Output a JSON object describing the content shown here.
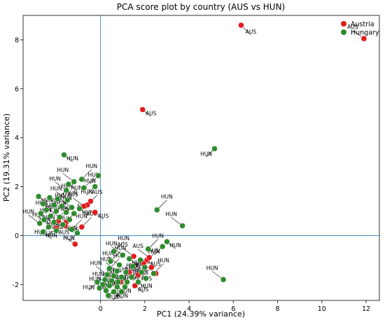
{
  "chart_data": {
    "type": "scatter",
    "title": "PCA score plot by country (AUS vs HUN)",
    "xlabel": "PC1 (24.39% variance)",
    "ylabel": "PC2 (19.31% variance)",
    "xlim": [
      -3.5,
      12.6
    ],
    "ylim": [
      -2.65,
      9.0
    ],
    "xticks": [
      0,
      2,
      4,
      6,
      8,
      10,
      12
    ],
    "yticks": [
      -2,
      0,
      2,
      4,
      6,
      8
    ],
    "grid": false,
    "legend_position": "top-right",
    "reference_lines": {
      "x": 0,
      "y": 0,
      "color": "#1f77b4"
    },
    "series": [
      {
        "name": "Austria",
        "color": "#e41a1c",
        "point_label": "AUS",
        "points": [
          [
            6.35,
            8.6
          ],
          [
            11.9,
            8.05
          ],
          [
            1.9,
            5.15
          ],
          [
            -0.45,
            1.4
          ],
          [
            -0.6,
            1.25
          ],
          [
            -0.75,
            1.2
          ],
          [
            -0.25,
            0.95
          ],
          [
            -1.55,
            0.55
          ],
          [
            -0.85,
            0.35
          ],
          [
            -1.15,
            -0.35
          ],
          [
            -1.6,
            0.4
          ],
          [
            -2.0,
            0.3
          ],
          [
            -1.9,
            0.6
          ],
          [
            1.5,
            -0.85
          ],
          [
            2.1,
            -1.0
          ],
          [
            2.3,
            -1.3
          ],
          [
            1.95,
            -1.15
          ],
          [
            2.2,
            -0.9
          ],
          [
            1.7,
            -1.6
          ],
          [
            1.3,
            -1.5
          ],
          [
            0.9,
            -1.9
          ],
          [
            2.5,
            -1.55
          ],
          [
            1.55,
            -2.05
          ]
        ]
      },
      {
        "name": "Hungary",
        "color": "#2e8b2e",
        "point_label": "HUN",
        "points": [
          [
            5.15,
            3.55
          ],
          [
            2.55,
            1.05
          ],
          [
            3.7,
            0.4
          ],
          [
            3.0,
            -0.25
          ],
          [
            2.8,
            -0.45
          ],
          [
            2.15,
            -0.55
          ],
          [
            5.55,
            -1.8
          ],
          [
            -1.65,
            3.3
          ],
          [
            -0.1,
            2.45
          ],
          [
            -0.85,
            2.3
          ],
          [
            -1.2,
            2.2
          ],
          [
            -1.45,
            2.1
          ],
          [
            -0.25,
            2.0
          ],
          [
            -0.75,
            1.95
          ],
          [
            -1.55,
            1.85
          ],
          [
            -2.8,
            1.6
          ],
          [
            -2.3,
            1.55
          ],
          [
            -1.95,
            1.5
          ],
          [
            -1.5,
            1.45
          ],
          [
            -2.6,
            1.3
          ],
          [
            -2.1,
            1.25
          ],
          [
            -1.75,
            1.2
          ],
          [
            -1.3,
            1.15
          ],
          [
            -0.95,
            1.1
          ],
          [
            -2.45,
            1.05
          ],
          [
            -2.0,
            1.0
          ],
          [
            -1.55,
            0.95
          ],
          [
            -2.7,
            0.9
          ],
          [
            -1.2,
            0.9
          ],
          [
            -2.25,
            0.8
          ],
          [
            -1.85,
            0.75
          ],
          [
            -2.55,
            0.65
          ],
          [
            -1.4,
            0.65
          ],
          [
            -2.1,
            0.55
          ],
          [
            -2.75,
            0.5
          ],
          [
            -1.7,
            0.45
          ],
          [
            -2.35,
            0.35
          ],
          [
            -1.3,
            0.25
          ],
          [
            -2.0,
            0.2
          ],
          [
            -2.6,
            0.15
          ],
          [
            -1.05,
            0.1
          ],
          [
            0.6,
            -0.65
          ],
          [
            1.0,
            -0.8
          ],
          [
            1.3,
            -0.95
          ],
          [
            1.8,
            -1.0
          ],
          [
            0.45,
            -1.05
          ],
          [
            0.85,
            -1.2
          ],
          [
            1.45,
            -1.25
          ],
          [
            2.0,
            -1.3
          ],
          [
            0.4,
            -1.35
          ],
          [
            0.75,
            -1.45
          ],
          [
            1.15,
            -1.5
          ],
          [
            1.85,
            -1.5
          ],
          [
            2.4,
            -1.55
          ],
          [
            0.3,
            -1.6
          ],
          [
            0.6,
            -1.65
          ],
          [
            0.95,
            -1.7
          ],
          [
            1.4,
            -1.7
          ],
          [
            2.05,
            -1.75
          ],
          [
            0.2,
            -1.8
          ],
          [
            0.5,
            -1.85
          ],
          [
            0.8,
            -1.9
          ],
          [
            1.2,
            -1.9
          ],
          [
            1.7,
            -1.9
          ],
          [
            -0.15,
            -1.9
          ],
          [
            0.1,
            -2.0
          ],
          [
            0.4,
            -2.05
          ],
          [
            0.75,
            -2.1
          ],
          [
            1.1,
            -2.1
          ],
          [
            -0.05,
            -2.15
          ],
          [
            0.25,
            -2.25
          ],
          [
            0.6,
            -2.3
          ],
          [
            0.95,
            -2.3
          ],
          [
            0.35,
            -2.45
          ]
        ]
      }
    ]
  }
}
